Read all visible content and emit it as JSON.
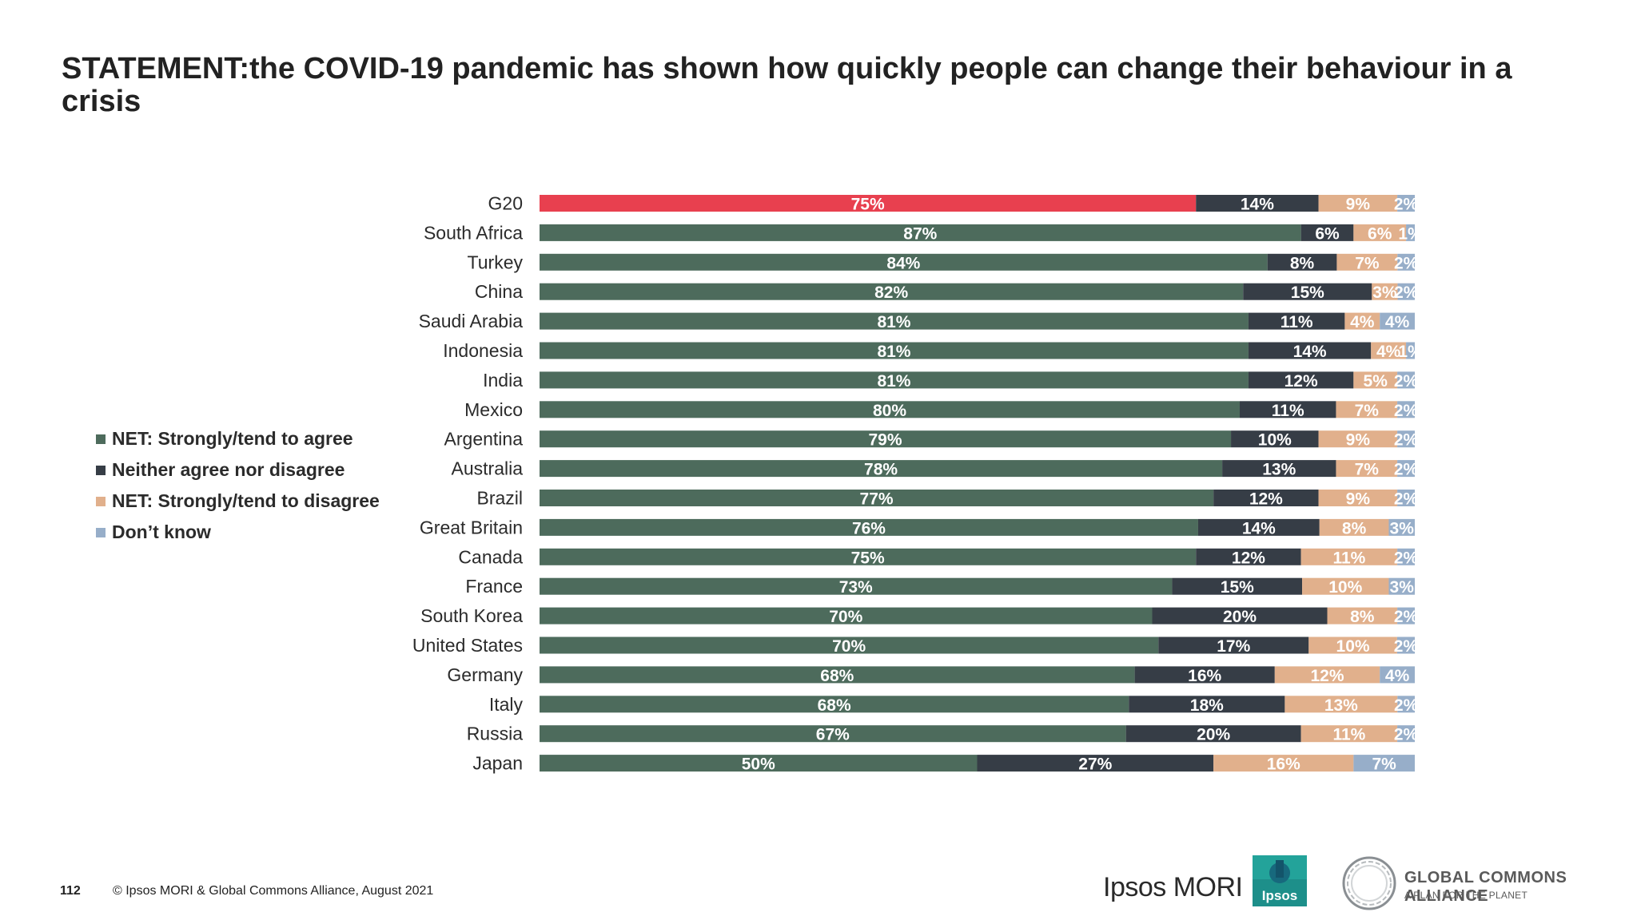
{
  "title": "STATEMENT:the COVID-19 pandemic has shown how quickly people can change their behaviour in a crisis",
  "legend": [
    {
      "label": "NET: Strongly/tend to agree",
      "color": "#4d6b5c"
    },
    {
      "label": "Neither agree nor disagree",
      "color": "#363d46"
    },
    {
      "label": "NET: Strongly/tend to disagree",
      "color": "#e1b08c"
    },
    {
      "label": "Don’t know",
      "color": "#97aec9"
    }
  ],
  "highlight_color": "#e8404f",
  "chart_data": {
    "type": "bar",
    "orientation": "horizontal",
    "stacked": true,
    "title": "STATEMENT:the COVID-19 pandemic has shown how quickly people can change their behaviour in a crisis",
    "categories": [
      "G20",
      "South Africa",
      "Turkey",
      "China",
      "Saudi Arabia",
      "Indonesia",
      "India",
      "Mexico",
      "Argentina",
      "Australia",
      "Brazil",
      "Great Britain",
      "Canada",
      "France",
      "South Korea",
      "United States",
      "Germany",
      "Italy",
      "Russia",
      "Japan"
    ],
    "series": [
      {
        "name": "NET: Strongly/tend to agree",
        "values": [
          75,
          87,
          84,
          82,
          81,
          81,
          81,
          80,
          79,
          78,
          77,
          76,
          75,
          73,
          70,
          70,
          68,
          68,
          67,
          50
        ]
      },
      {
        "name": "Neither agree nor disagree",
        "values": [
          14,
          6,
          8,
          15,
          11,
          14,
          12,
          11,
          10,
          13,
          12,
          14,
          12,
          15,
          20,
          17,
          16,
          18,
          20,
          27
        ]
      },
      {
        "name": "NET: Strongly/tend to disagree",
        "values": [
          9,
          6,
          7,
          3,
          4,
          4,
          5,
          7,
          9,
          7,
          9,
          8,
          11,
          10,
          8,
          10,
          12,
          13,
          11,
          16
        ]
      },
      {
        "name": "Don’t know",
        "values": [
          2,
          1,
          2,
          2,
          4,
          1,
          2,
          2,
          2,
          2,
          2,
          3,
          2,
          3,
          2,
          2,
          4,
          2,
          2,
          7
        ]
      }
    ],
    "value_labels": [
      [
        "75%",
        "14%",
        "9%",
        "2%"
      ],
      [
        "87%",
        "6%",
        "6%",
        "1%"
      ],
      [
        "84%",
        "8%",
        "7%",
        "2%"
      ],
      [
        "82%",
        "15%",
        "3%",
        "2%"
      ],
      [
        "81%",
        "11%",
        "4%",
        "4%"
      ],
      [
        "81%",
        "14%",
        "4%",
        "1%"
      ],
      [
        "81%",
        "12%",
        "5%",
        "2%"
      ],
      [
        "80%",
        "11%",
        "7%",
        "2%"
      ],
      [
        "79%",
        "10%",
        "9%",
        "2%"
      ],
      [
        "78%",
        "13%",
        "7%",
        "2%"
      ],
      [
        "77%",
        "12%",
        "9%",
        "2%"
      ],
      [
        "76%",
        "14%",
        "8%",
        "3%"
      ],
      [
        "75%",
        "12%",
        "11%",
        "2%"
      ],
      [
        "73%",
        "15%",
        "10%",
        "3%"
      ],
      [
        "70%",
        "20%",
        "8%",
        "2%"
      ],
      [
        "70%",
        "17%",
        "10%",
        "2%"
      ],
      [
        "68%",
        "16%",
        "12%",
        "4%"
      ],
      [
        "68%",
        "18%",
        "13%",
        "2%"
      ],
      [
        "67%",
        "20%",
        "11%",
        "2%"
      ],
      [
        "50%",
        "27%",
        "16%",
        "7%"
      ]
    ],
    "highlight_category": "G20",
    "xlim": [
      0,
      100
    ],
    "legend_position": "left",
    "grid": false
  },
  "footer": {
    "page_number": "112",
    "copyright": "© Ipsos MORI & Global Commons Alliance, August 2021"
  },
  "logos": {
    "ipsos_mori": "Ipsos MORI",
    "ipsos_badge": "Ipsos",
    "gca_title": "GLOBAL COMMONS ALLIANCE",
    "gca_subtitle": "A PLAN FOR THE PLANET"
  }
}
